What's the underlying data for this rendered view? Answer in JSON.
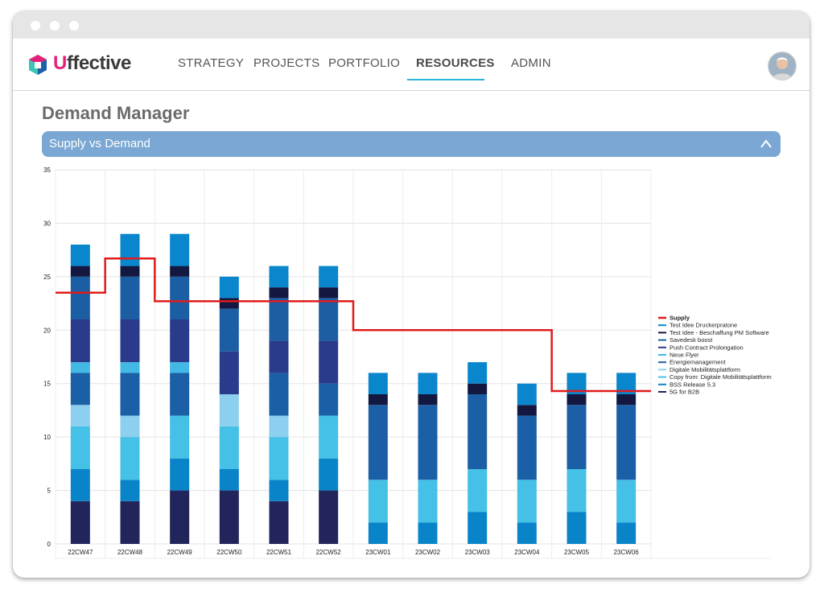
{
  "app": {
    "brand_prefix": "U",
    "brand_rest": "ffective"
  },
  "nav": {
    "items": [
      {
        "label": "STRATEGY",
        "active": false
      },
      {
        "label": "PROJECTS",
        "active": false
      },
      {
        "label": "PORTFOLIO",
        "active": false
      },
      {
        "label": "RESOURCES",
        "active": true
      },
      {
        "label": "ADMIN",
        "active": false
      }
    ]
  },
  "page": {
    "title": "Demand Manager",
    "panel_title": "Supply vs Demand",
    "collapse_icon": "chevron-up-icon"
  },
  "chart_data": {
    "type": "bar",
    "stacked": true,
    "categories": [
      "22CW47",
      "22CW48",
      "22CW49",
      "22CW50",
      "22CW51",
      "22CW52",
      "23CW01",
      "23CW02",
      "23CW03",
      "23CW04",
      "23CW05",
      "23CW06"
    ],
    "ylim": [
      0,
      35
    ],
    "yticks": [
      0,
      5,
      10,
      15,
      20,
      25,
      30,
      35
    ],
    "grid": true,
    "legend_position": "right",
    "series": [
      {
        "name": "5G for B2B",
        "color": "#22245c",
        "values": [
          4,
          4,
          5,
          5,
          4,
          5,
          0,
          0,
          0,
          0,
          0,
          0
        ]
      },
      {
        "name": "BSS Release 5.3",
        "color": "#0a84c8",
        "values": [
          3,
          2,
          3,
          2,
          2,
          3,
          2,
          2,
          3,
          2,
          3,
          2
        ]
      },
      {
        "name": "Copy from: Digitale Mobilitätsplattform",
        "color": "#45c0e6",
        "values": [
          4,
          4,
          4,
          4,
          4,
          4,
          4,
          4,
          4,
          4,
          4,
          4
        ]
      },
      {
        "name": "Digitale Mobilitätsplattform",
        "color": "#8ccfee",
        "values": [
          2,
          2,
          0,
          3,
          2,
          0,
          0,
          0,
          0,
          0,
          0,
          0
        ]
      },
      {
        "name": "Energiemanagement",
        "color": "#1b5fa6",
        "values": [
          3,
          4,
          4,
          0,
          4,
          3,
          7,
          7,
          7,
          6,
          6,
          7
        ]
      },
      {
        "name": "Neue Flyer",
        "color": "#42b8e4",
        "values": [
          1,
          1,
          1,
          0,
          0,
          0,
          0,
          0,
          0,
          0,
          0,
          0
        ]
      },
      {
        "name": "Push Contract Prolongation",
        "color": "#2a3b8c",
        "values": [
          4,
          4,
          4,
          4,
          3,
          4,
          0,
          0,
          0,
          0,
          0,
          0
        ]
      },
      {
        "name": "Savedesk boost",
        "color": "#1c5ea4",
        "values": [
          4,
          4,
          4,
          4,
          4,
          4,
          0,
          0,
          0,
          0,
          0,
          0
        ]
      },
      {
        "name": "Test Idee - Beschaffung PM Software",
        "color": "#121840",
        "values": [
          1,
          1,
          1,
          1,
          1,
          1,
          1,
          1,
          1,
          1,
          1,
          1
        ]
      },
      {
        "name": "Test Idee Druckerpratone",
        "color": "#0a86cc",
        "values": [
          2,
          3,
          3,
          2,
          2,
          2,
          2,
          2,
          2,
          2,
          2,
          2
        ]
      }
    ],
    "supply": {
      "name": "Supply",
      "color": "#e01b1b",
      "values": [
        23.5,
        26.7,
        22.7,
        22.7,
        22.7,
        22.7,
        20,
        20,
        20,
        20,
        14.3,
        14.3
      ]
    },
    "legend_order": [
      "Supply",
      "Test Idee Druckerpratone",
      "Test Idee - Beschaffung PM Software",
      "Savedesk boost",
      "Push Contract Prolongation",
      "Neue Flyer",
      "Energiemanagement",
      "Digitale Mobilitätsplattform",
      "Copy from: Digitale Mobilitätsplattform",
      "BSS Release 5.3",
      "5G for B2B"
    ]
  }
}
